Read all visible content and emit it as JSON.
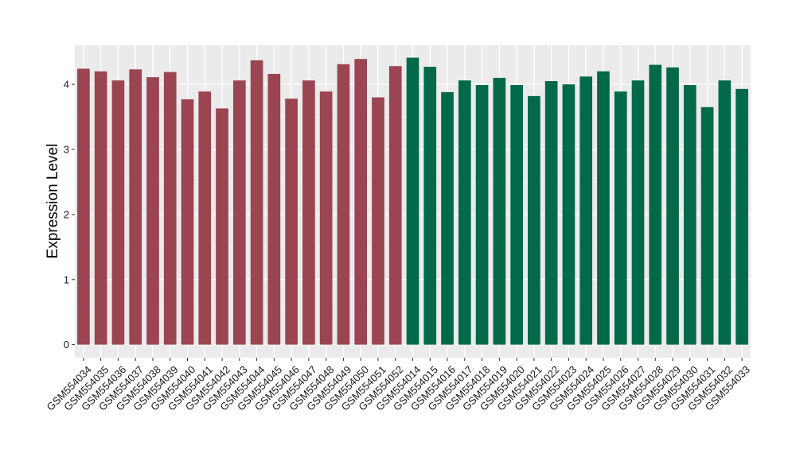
{
  "chart_data": {
    "type": "bar",
    "title": "",
    "xlabel": "",
    "ylabel": "Expression Level",
    "ylim": [
      -0.2,
      4.6
    ],
    "yticks": [
      0,
      1,
      2,
      3,
      4
    ],
    "grid": true,
    "legend": "none",
    "panel_background": "#ebebeb",
    "categories": [
      "GSM554034",
      "GSM554035",
      "GSM554036",
      "GSM554037",
      "GSM554038",
      "GSM554039",
      "GSM554040",
      "GSM554041",
      "GSM554042",
      "GSM554043",
      "GSM554044",
      "GSM554045",
      "GSM554046",
      "GSM554047",
      "GSM554048",
      "GSM554049",
      "GSM554050",
      "GSM554051",
      "GSM554052",
      "GSM554014",
      "GSM554015",
      "GSM554016",
      "GSM554017",
      "GSM554018",
      "GSM554019",
      "GSM554020",
      "GSM554021",
      "GSM554022",
      "GSM554023",
      "GSM554024",
      "GSM554025",
      "GSM554026",
      "GSM554027",
      "GSM554028",
      "GSM554029",
      "GSM554030",
      "GSM554031",
      "GSM554032",
      "GSM554033"
    ],
    "values": [
      4.24,
      4.2,
      4.06,
      4.23,
      4.11,
      4.19,
      3.77,
      3.89,
      3.63,
      4.06,
      4.37,
      4.16,
      3.78,
      4.06,
      3.89,
      4.31,
      4.39,
      3.8,
      4.28,
      4.41,
      4.27,
      3.88,
      4.06,
      3.99,
      4.1,
      3.99,
      3.82,
      4.05,
      4.0,
      4.12,
      4.2,
      3.89,
      4.06,
      4.3,
      4.26,
      3.99,
      3.65,
      4.06,
      3.93
    ],
    "colors": [
      "#9b4452",
      "#9b4452",
      "#9b4452",
      "#9b4452",
      "#9b4452",
      "#9b4452",
      "#9b4452",
      "#9b4452",
      "#9b4452",
      "#9b4452",
      "#9b4452",
      "#9b4452",
      "#9b4452",
      "#9b4452",
      "#9b4452",
      "#9b4452",
      "#9b4452",
      "#9b4452",
      "#9b4452",
      "#02694a",
      "#02694a",
      "#02694a",
      "#02694a",
      "#02694a",
      "#02694a",
      "#02694a",
      "#02694a",
      "#02694a",
      "#02694a",
      "#02694a",
      "#02694a",
      "#02694a",
      "#02694a",
      "#02694a",
      "#02694a",
      "#02694a",
      "#02694a",
      "#02694a",
      "#02694a"
    ]
  }
}
